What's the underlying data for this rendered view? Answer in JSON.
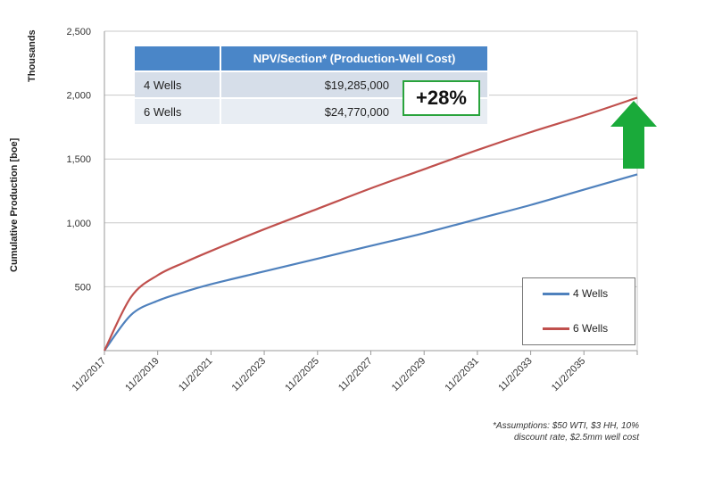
{
  "chart_data": {
    "type": "line",
    "ylabel": "Cumulative Production [boe]",
    "y_unit": "Thousands",
    "ylim": [
      0,
      2500
    ],
    "y_ticks": [
      "",
      "500",
      "1,000",
      "1,500",
      "2,000",
      "2,500"
    ],
    "y_tick_values": [
      0,
      500,
      1000,
      1500,
      2000,
      2500
    ],
    "x_ticks": [
      "11/2/2017",
      "11/2/2019",
      "11/2/2021",
      "11/2/2023",
      "11/2/2025",
      "11/2/2027",
      "11/2/2029",
      "11/2/2031",
      "11/2/2033",
      "11/2/2035"
    ],
    "xlim": [
      "11/2/2017",
      "11/2/2037"
    ],
    "grid": "horizontal",
    "legend_position": "bottom-right",
    "x": [
      "11/2/2017",
      "11/2/2018",
      "11/2/2019",
      "11/2/2020",
      "11/2/2021",
      "11/2/2023",
      "11/2/2025",
      "11/2/2027",
      "11/2/2029",
      "11/2/2031",
      "11/2/2033",
      "11/2/2035",
      "11/2/2037"
    ],
    "series": [
      {
        "name": "4 Wells",
        "color": "#4f81bd",
        "values": [
          0,
          280,
          390,
          460,
          520,
          620,
          720,
          820,
          920,
          1030,
          1140,
          1260,
          1380
        ]
      },
      {
        "name": "6 Wells",
        "color": "#c0504d",
        "values": [
          0,
          420,
          590,
          690,
          780,
          950,
          1110,
          1270,
          1420,
          1570,
          1710,
          1840,
          1980
        ]
      }
    ]
  },
  "npv_table": {
    "header": "NPV/Section* (Production-Well Cost)",
    "rows": [
      {
        "label": "4 Wells",
        "value": "$19,285,000"
      },
      {
        "label": "6 Wells",
        "value": "$24,770,000"
      }
    ]
  },
  "callout": {
    "text": "+28%",
    "border_color": "#29a33c",
    "arrow_color": "#1aaa3a",
    "arrow_icon": "arrow-up-icon"
  },
  "footnote": {
    "line1": "*Assumptions: $50 WTI, $3 HH, 10%",
    "line2": "discount rate, $2.5mm well cost"
  }
}
